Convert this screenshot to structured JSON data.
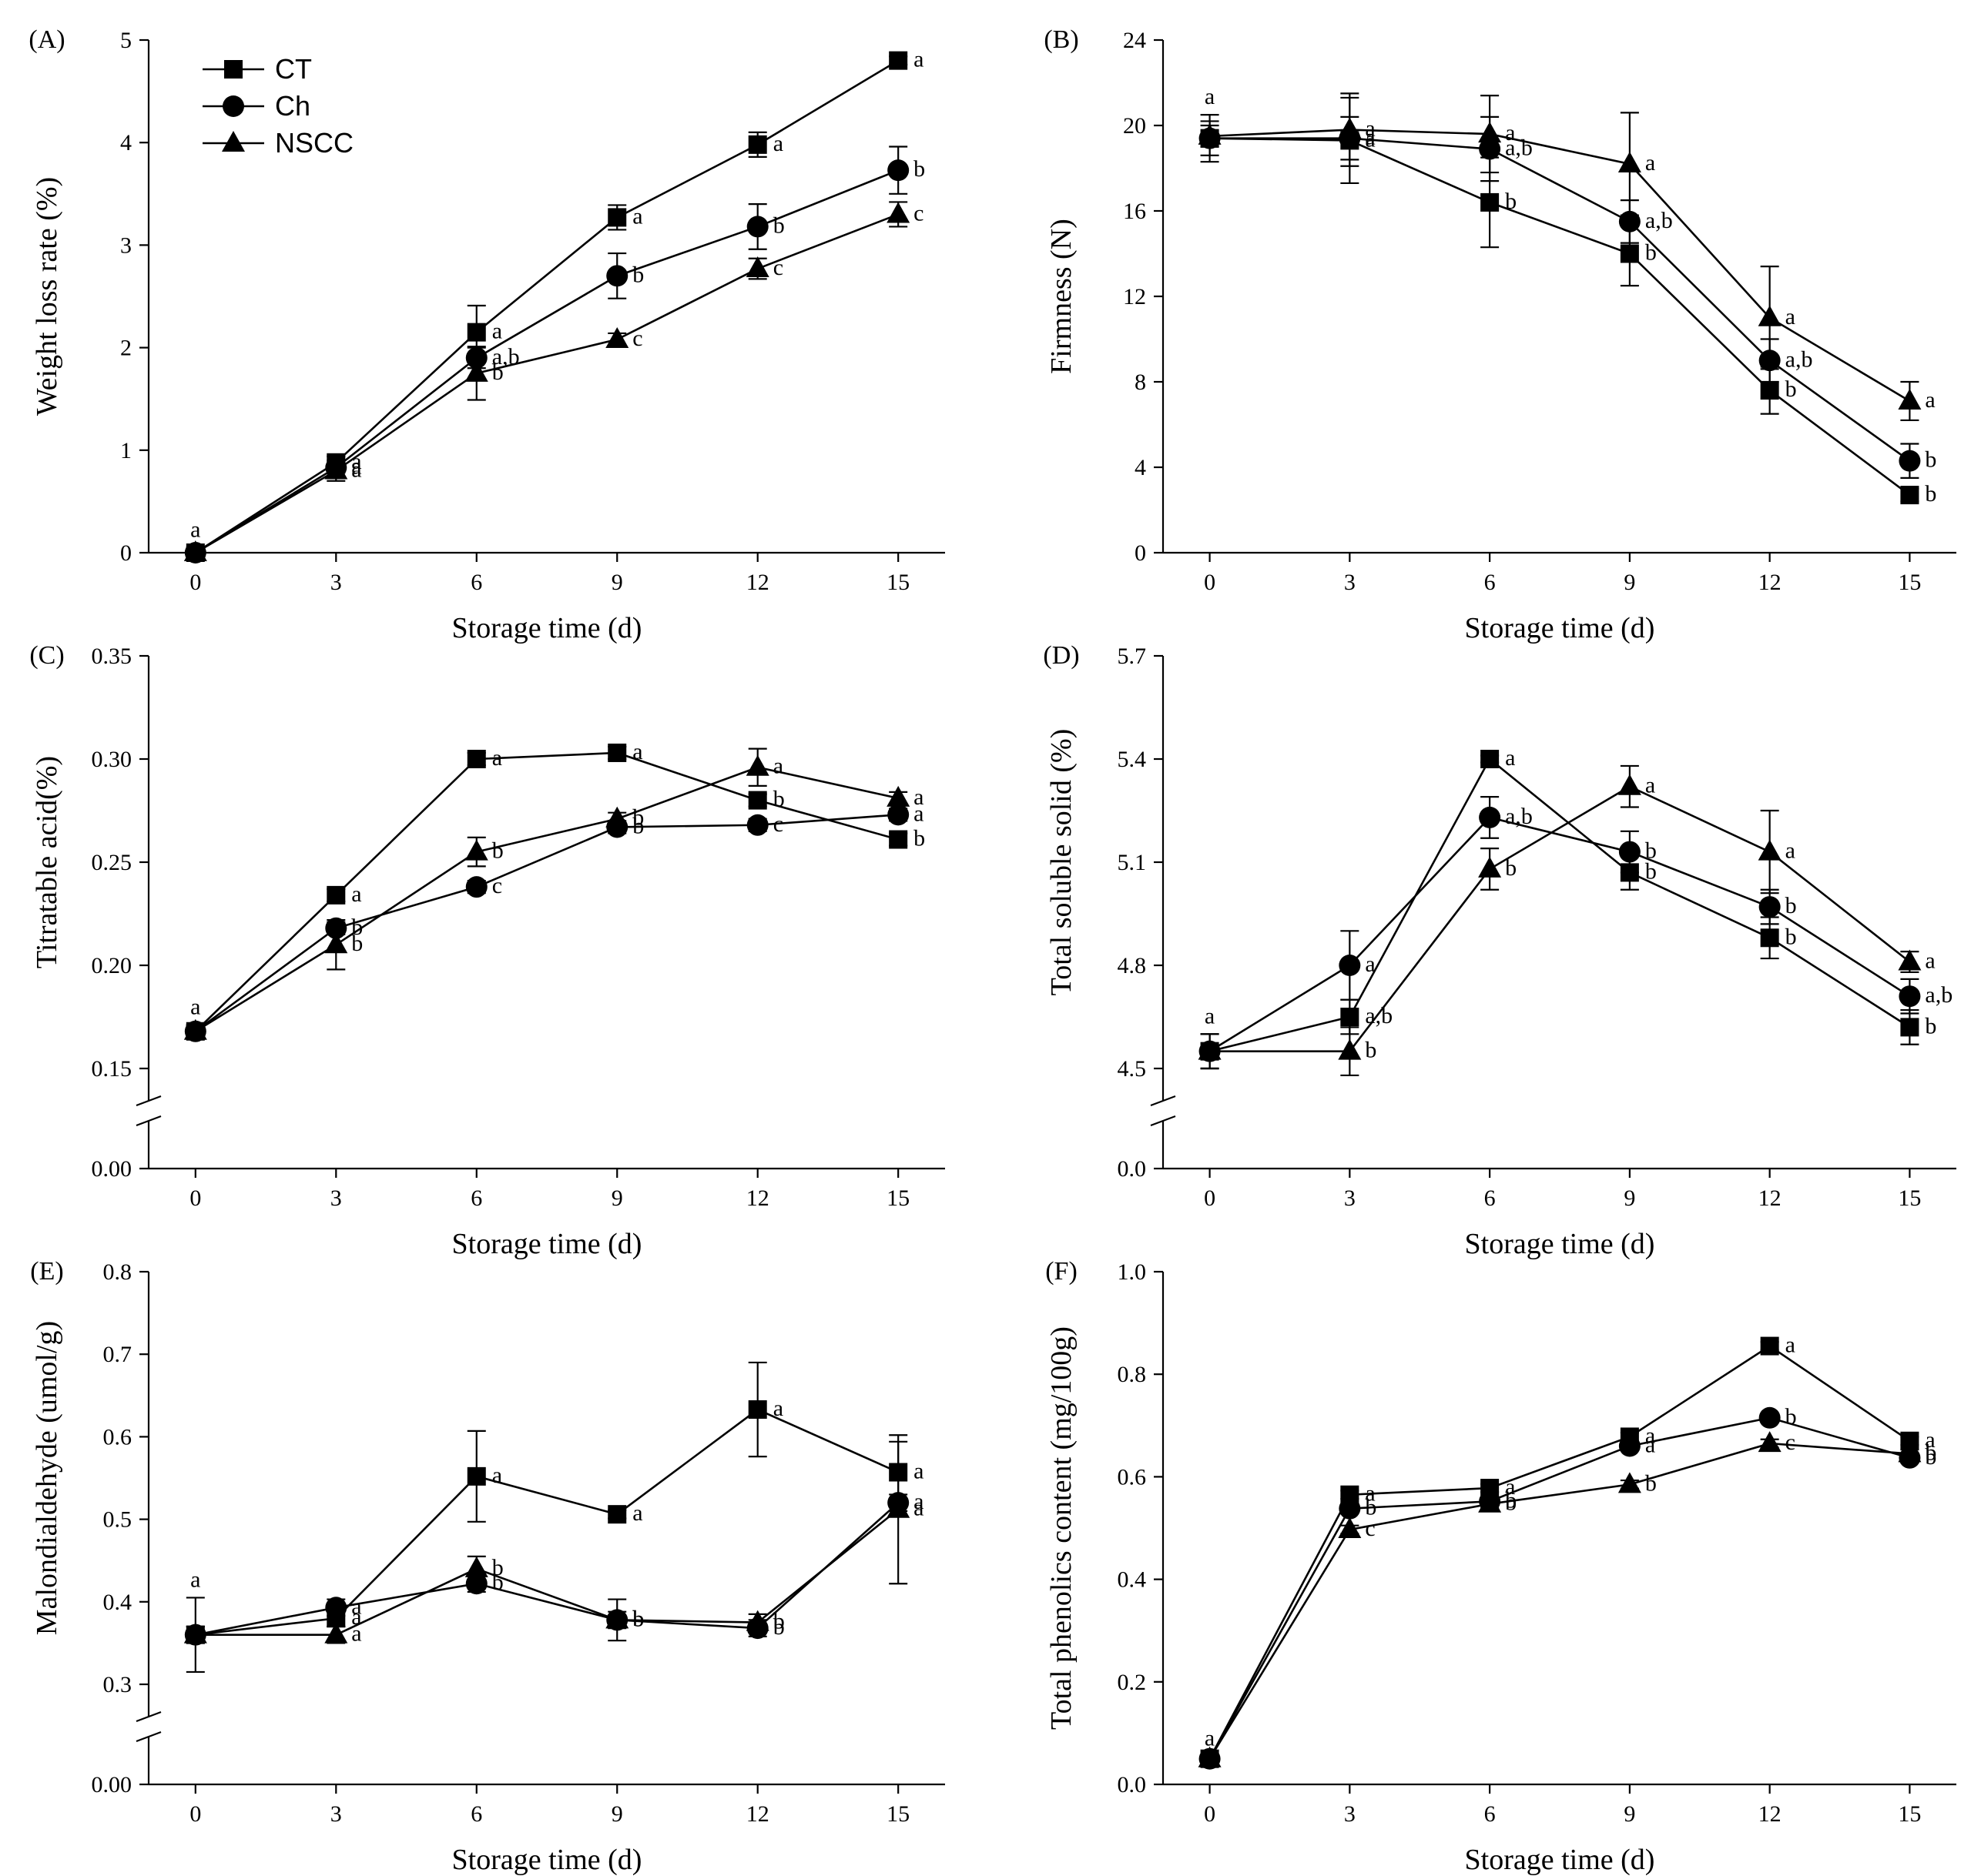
{
  "legend": [
    "CT",
    "Ch",
    "NSCC"
  ],
  "chart_data": [
    {
      "panel": "(A)",
      "type": "line",
      "xlabel": "Storage time (d)",
      "ylabel": "Weight loss rate (%)",
      "x": [
        0,
        3,
        6,
        9,
        12,
        15
      ],
      "xlim": [
        -1,
        16
      ],
      "ylim": [
        0,
        5
      ],
      "yticks": [
        0,
        1,
        2,
        3,
        4,
        5
      ],
      "ytick_labels": [
        "0",
        "1",
        "2",
        "3",
        "4",
        "5"
      ],
      "break": false,
      "legend_position": "top-left",
      "series": [
        {
          "name": "CT",
          "marker": "square",
          "values": [
            0,
            0.88,
            2.15,
            3.27,
            3.98,
            4.8
          ],
          "errors": [
            0.05,
            0.06,
            0.26,
            0.12,
            0.12,
            0.04
          ],
          "letters": [
            "a",
            "a",
            "a",
            "a",
            "a",
            "a"
          ]
        },
        {
          "name": "Ch",
          "marker": "circle",
          "values": [
            0,
            0.83,
            1.9,
            2.7,
            3.18,
            3.73
          ],
          "errors": [
            0.05,
            0.05,
            0.1,
            0.22,
            0.22,
            0.23
          ],
          "letters": [
            "",
            "a",
            "a,b",
            "b",
            "b",
            "b"
          ]
        },
        {
          "name": "NSCC",
          "marker": "triangle",
          "values": [
            0,
            0.8,
            1.75,
            2.08,
            2.77,
            3.3
          ],
          "errors": [
            0.05,
            0.1,
            0.26,
            0.06,
            0.1,
            0.12
          ],
          "letters": [
            "",
            "a",
            "b",
            "c",
            "c",
            "c"
          ]
        }
      ]
    },
    {
      "panel": "(B)",
      "type": "line",
      "xlabel": "Storage time (d)",
      "ylabel": "Firmness (N)",
      "x": [
        0,
        3,
        6,
        9,
        12,
        15
      ],
      "xlim": [
        -1,
        16
      ],
      "ylim": [
        0,
        24
      ],
      "yticks": [
        0,
        4,
        8,
        12,
        16,
        20,
        24
      ],
      "ytick_labels": [
        "0",
        "4",
        "8",
        "12",
        "16",
        "20",
        "24"
      ],
      "break": false,
      "series": [
        {
          "name": "CT",
          "marker": "square",
          "values": [
            19.4,
            19.3,
            16.4,
            14.0,
            7.6,
            2.7
          ],
          "errors": [
            1.1,
            2.0,
            2.1,
            1.5,
            1.1,
            0.3
          ],
          "letters": [
            "a",
            "a",
            "b",
            "b",
            "b",
            "b"
          ]
        },
        {
          "name": "Ch",
          "marker": "circle",
          "values": [
            19.4,
            19.4,
            18.9,
            15.5,
            9.0,
            4.3
          ],
          "errors": [
            0.8,
            1.0,
            1.5,
            1.0,
            1.0,
            0.8
          ],
          "letters": [
            "",
            "a",
            "a,b",
            "a,b",
            "a,b",
            "b"
          ]
        },
        {
          "name": "NSCC",
          "marker": "triangle",
          "values": [
            19.5,
            19.8,
            19.6,
            18.2,
            11.0,
            7.1
          ],
          "errors": [
            0.5,
            1.7,
            1.8,
            2.4,
            2.4,
            0.9
          ],
          "letters": [
            "",
            "a",
            "a",
            "a",
            "a",
            "a"
          ]
        }
      ]
    },
    {
      "panel": "(C)",
      "type": "line",
      "xlabel": "Storage time (d)",
      "ylabel": "Titratable acid(%)",
      "x": [
        0,
        3,
        6,
        9,
        12,
        15
      ],
      "xlim": [
        -1,
        16
      ],
      "ylim": [
        0.15,
        0.35
      ],
      "yticks": [
        0.15,
        0.2,
        0.25,
        0.3,
        0.35
      ],
      "ytick_labels": [
        "0.15",
        "0.20",
        "0.25",
        "0.30",
        "0.35"
      ],
      "break": true,
      "break_label": "0.00",
      "series": [
        {
          "name": "CT",
          "marker": "square",
          "values": [
            0.168,
            0.234,
            0.3,
            0.303,
            0.28,
            0.261
          ],
          "errors": [
            0.003,
            0.003,
            0.003,
            0.003,
            0.003,
            0.003
          ],
          "letters": [
            "a",
            "a",
            "a",
            "a",
            "b",
            "b"
          ]
        },
        {
          "name": "Ch",
          "marker": "circle",
          "values": [
            0.168,
            0.218,
            0.238,
            0.267,
            0.268,
            0.273
          ],
          "errors": [
            0.003,
            0.003,
            0.003,
            0.003,
            0.003,
            0.003
          ],
          "letters": [
            "",
            "b",
            "c",
            "b",
            "c",
            "a"
          ]
        },
        {
          "name": "NSCC",
          "marker": "triangle",
          "values": [
            0.168,
            0.21,
            0.255,
            0.271,
            0.296,
            0.281
          ],
          "errors": [
            0.003,
            0.012,
            0.007,
            0.003,
            0.009,
            0.003
          ],
          "letters": [
            "",
            "b",
            "b",
            "b",
            "a",
            "a"
          ]
        }
      ]
    },
    {
      "panel": "(D)",
      "type": "line",
      "xlabel": "Storage time (d)",
      "ylabel": "Total soluble solid (%)",
      "x": [
        0,
        3,
        6,
        9,
        12,
        15
      ],
      "xlim": [
        -1,
        16
      ],
      "ylim": [
        4.5,
        5.7
      ],
      "yticks": [
        4.5,
        4.8,
        5.1,
        5.4,
        5.7
      ],
      "ytick_labels": [
        "4.5",
        "4.8",
        "5.1",
        "5.4",
        "5.7"
      ],
      "break": true,
      "break_label": "0.0",
      "series": [
        {
          "name": "CT",
          "marker": "square",
          "values": [
            4.55,
            4.65,
            5.4,
            5.07,
            4.88,
            4.62
          ],
          "errors": [
            0.05,
            0.05,
            0.01,
            0.05,
            0.06,
            0.05
          ],
          "letters": [
            "a",
            "a,b",
            "a",
            "b",
            "b",
            "b"
          ]
        },
        {
          "name": "Ch",
          "marker": "circle",
          "values": [
            4.55,
            4.8,
            5.23,
            5.13,
            4.97,
            4.71
          ],
          "errors": [
            0.05,
            0.1,
            0.06,
            0.06,
            0.05,
            0.05
          ],
          "letters": [
            "",
            "a",
            "a,b",
            "b",
            "b",
            "a,b"
          ]
        },
        {
          "name": "NSCC",
          "marker": "triangle",
          "values": [
            4.55,
            4.55,
            5.08,
            5.32,
            5.13,
            4.81
          ],
          "errors": [
            0.05,
            0.07,
            0.06,
            0.06,
            0.12,
            0.03
          ],
          "letters": [
            "",
            "b",
            "b",
            "a",
            "a",
            "a"
          ]
        }
      ]
    },
    {
      "panel": "(E)",
      "type": "line",
      "xlabel": "Storage time (d)",
      "ylabel": "Malondialdehyde (umol/g)",
      "x": [
        0,
        3,
        6,
        9,
        12,
        15
      ],
      "xlim": [
        -1,
        16
      ],
      "ylim": [
        0.3,
        0.8
      ],
      "yticks": [
        0.3,
        0.4,
        0.5,
        0.6,
        0.7,
        0.8
      ],
      "ytick_labels": [
        "0.3",
        "0.4",
        "0.5",
        "0.6",
        "0.7",
        "0.8"
      ],
      "break": true,
      "break_label": "0.00",
      "series": [
        {
          "name": "CT",
          "marker": "square",
          "values": [
            0.36,
            0.38,
            0.552,
            0.506,
            0.633,
            0.557
          ],
          "errors": [
            0.045,
            0.01,
            0.055,
            0.005,
            0.057,
            0.037
          ],
          "letters": [
            "a",
            "a",
            "a",
            "a",
            "a",
            "a"
          ]
        },
        {
          "name": "Ch",
          "marker": "circle",
          "values": [
            0.36,
            0.393,
            0.422,
            0.378,
            0.368,
            0.52
          ],
          "errors": [
            0.01,
            0.01,
            0.01,
            0.01,
            0.01,
            0.01
          ],
          "letters": [
            "",
            "a",
            "b",
            "b",
            "b",
            "a"
          ]
        },
        {
          "name": "NSCC",
          "marker": "triangle",
          "values": [
            0.36,
            0.36,
            0.44,
            0.378,
            0.375,
            0.512
          ],
          "errors": [
            0.01,
            0.01,
            0.015,
            0.025,
            0.01,
            0.09
          ],
          "letters": [
            "",
            "a",
            "b",
            "b",
            "b",
            "a"
          ]
        }
      ]
    },
    {
      "panel": "(F)",
      "type": "line",
      "xlabel": "Storage time (d)",
      "ylabel": "Total phenolics content (mg/100g)",
      "x": [
        0,
        3,
        6,
        9,
        12,
        15
      ],
      "xlim": [
        -1,
        16
      ],
      "ylim": [
        0,
        1.0
      ],
      "yticks": [
        0,
        0.2,
        0.4,
        0.6,
        0.8,
        1.0
      ],
      "ytick_labels": [
        "0.0",
        "0.2",
        "0.4",
        "0.6",
        "0.8",
        "1.0"
      ],
      "break": false,
      "series": [
        {
          "name": "CT",
          "marker": "square",
          "values": [
            0.05,
            0.565,
            0.578,
            0.678,
            0.855,
            0.67
          ],
          "errors": [
            0.005,
            0.008,
            0.008,
            0.008,
            0.008,
            0.008
          ],
          "letters": [
            "a",
            "a",
            "a",
            "a",
            "a",
            "a"
          ]
        },
        {
          "name": "Ch",
          "marker": "circle",
          "values": [
            0.05,
            0.538,
            0.552,
            0.66,
            0.715,
            0.637
          ],
          "errors": [
            0.005,
            0.008,
            0.008,
            0.008,
            0.008,
            0.008
          ],
          "letters": [
            "",
            "b",
            "b",
            "a",
            "b",
            "b"
          ]
        },
        {
          "name": "NSCC",
          "marker": "triangle",
          "values": [
            0.05,
            0.497,
            0.547,
            0.585,
            0.665,
            0.645
          ],
          "errors": [
            0.005,
            0.008,
            0.008,
            0.008,
            0.008,
            0.008
          ],
          "letters": [
            "",
            "c",
            "b",
            "b",
            "c",
            "b"
          ]
        }
      ]
    }
  ]
}
